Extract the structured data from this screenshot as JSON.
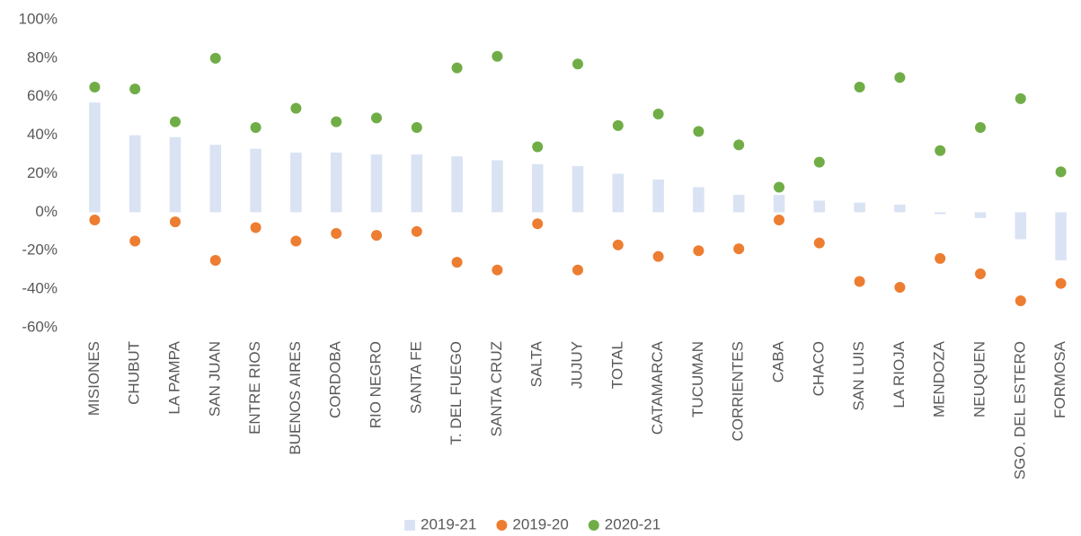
{
  "chart_data": {
    "type": "bar",
    "categories": [
      "MISIONES",
      "CHUBUT",
      "LA PAMPA",
      "SAN JUAN",
      "ENTRE RIOS",
      "BUENOS AIRES",
      "CORDOBA",
      "RIO NEGRO",
      "SANTA FE",
      "T. DEL FUEGO",
      "SANTA CRUZ",
      "SALTA",
      "JUJUY",
      "TOTAL",
      "CATAMARCA",
      "TUCUMAN",
      "CORRIENTES",
      "CABA",
      "CHACO",
      "SAN LUIS",
      "LA RIOJA",
      "MENDOZA",
      "NEUQUEN",
      "SGO. DEL ESTERO",
      "FORMOSA"
    ],
    "series": [
      {
        "name": "2019-21",
        "type": "bar",
        "color": "#dae3f3",
        "values": [
          57,
          40,
          39,
          35,
          33,
          31,
          31,
          30,
          30,
          29,
          27,
          25,
          24,
          20,
          17,
          13,
          9,
          9,
          6,
          5,
          4,
          -1,
          -3,
          -14,
          -25
        ]
      },
      {
        "name": "2019-20",
        "type": "scatter",
        "color": "#ed7d31",
        "values": [
          -4,
          -15,
          -5,
          -25,
          -8,
          -15,
          -11,
          -12,
          -10,
          -26,
          -30,
          -6,
          -30,
          -17,
          -23,
          -20,
          -19,
          -4,
          -16,
          -36,
          -39,
          -24,
          -32,
          -46,
          -37
        ]
      },
      {
        "name": "2020-21",
        "type": "scatter",
        "color": "#70ad47",
        "values": [
          65,
          64,
          47,
          80,
          44,
          54,
          47,
          49,
          44,
          75,
          81,
          34,
          77,
          45,
          51,
          42,
          35,
          13,
          26,
          65,
          70,
          32,
          44,
          59,
          21
        ]
      }
    ],
    "ylim": [
      -60,
      100
    ],
    "yticks": [
      {
        "value": -60,
        "label": "-60%"
      },
      {
        "value": -40,
        "label": "-40%"
      },
      {
        "value": -20,
        "label": "-20%"
      },
      {
        "value": 0,
        "label": "0%"
      },
      {
        "value": 20,
        "label": "20%"
      },
      {
        "value": 40,
        "label": "40%"
      },
      {
        "value": 60,
        "label": "60%"
      },
      {
        "value": 80,
        "label": "80%"
      },
      {
        "value": 100,
        "label": "100%"
      }
    ],
    "grid": false,
    "legend": "bottom"
  }
}
